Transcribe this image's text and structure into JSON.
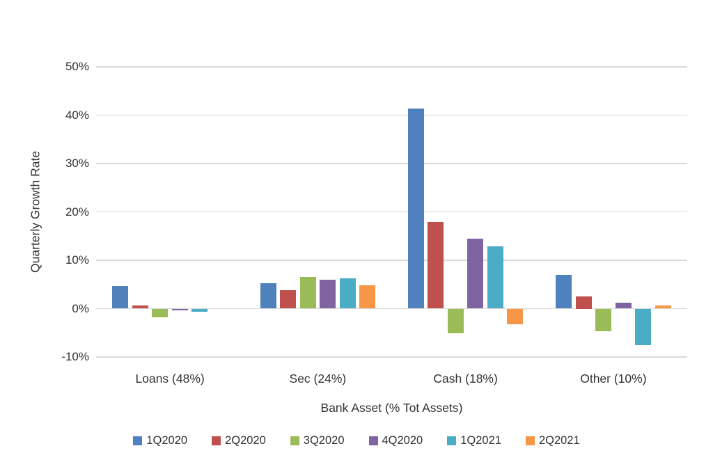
{
  "chart_data": {
    "type": "bar",
    "title": "",
    "categories": [
      "Loans (48%)",
      "Sec (24%)",
      "Cash (18%)",
      "Other (10%)"
    ],
    "series": [
      {
        "name": "1Q2020",
        "color": "#4F81BD",
        "values": [
          4.7,
          5.2,
          41.3,
          7.0
        ]
      },
      {
        "name": "2Q2020",
        "color": "#C0504D",
        "values": [
          0.6,
          3.8,
          17.9,
          2.5
        ]
      },
      {
        "name": "3Q2020",
        "color": "#9BBB59",
        "values": [
          -1.8,
          6.6,
          -5.1,
          -4.7
        ]
      },
      {
        "name": "4Q2020",
        "color": "#8064A2",
        "values": [
          -0.4,
          6.0,
          14.4,
          1.2
        ]
      },
      {
        "name": "1Q2021",
        "color": "#4BACC6",
        "values": [
          -0.7,
          6.2,
          12.9,
          -7.5
        ]
      },
      {
        "name": "2Q2021",
        "color": "#F79646",
        "values": [
          0.0,
          4.8,
          -3.3,
          0.7
        ]
      }
    ],
    "xlabel": "Bank Asset (% Tot Assets)",
    "ylabel": "Quarterly Growth Rate",
    "ylim": [
      -10,
      50
    ],
    "yticks": [
      50,
      40,
      30,
      20,
      10,
      0,
      -10
    ],
    "ytick_suffix": "%",
    "grid": true,
    "legend_position": "bottom"
  },
  "styles": {
    "grid_color": "#d9d9d9",
    "text_color": "#333333",
    "background": "#ffffff"
  }
}
